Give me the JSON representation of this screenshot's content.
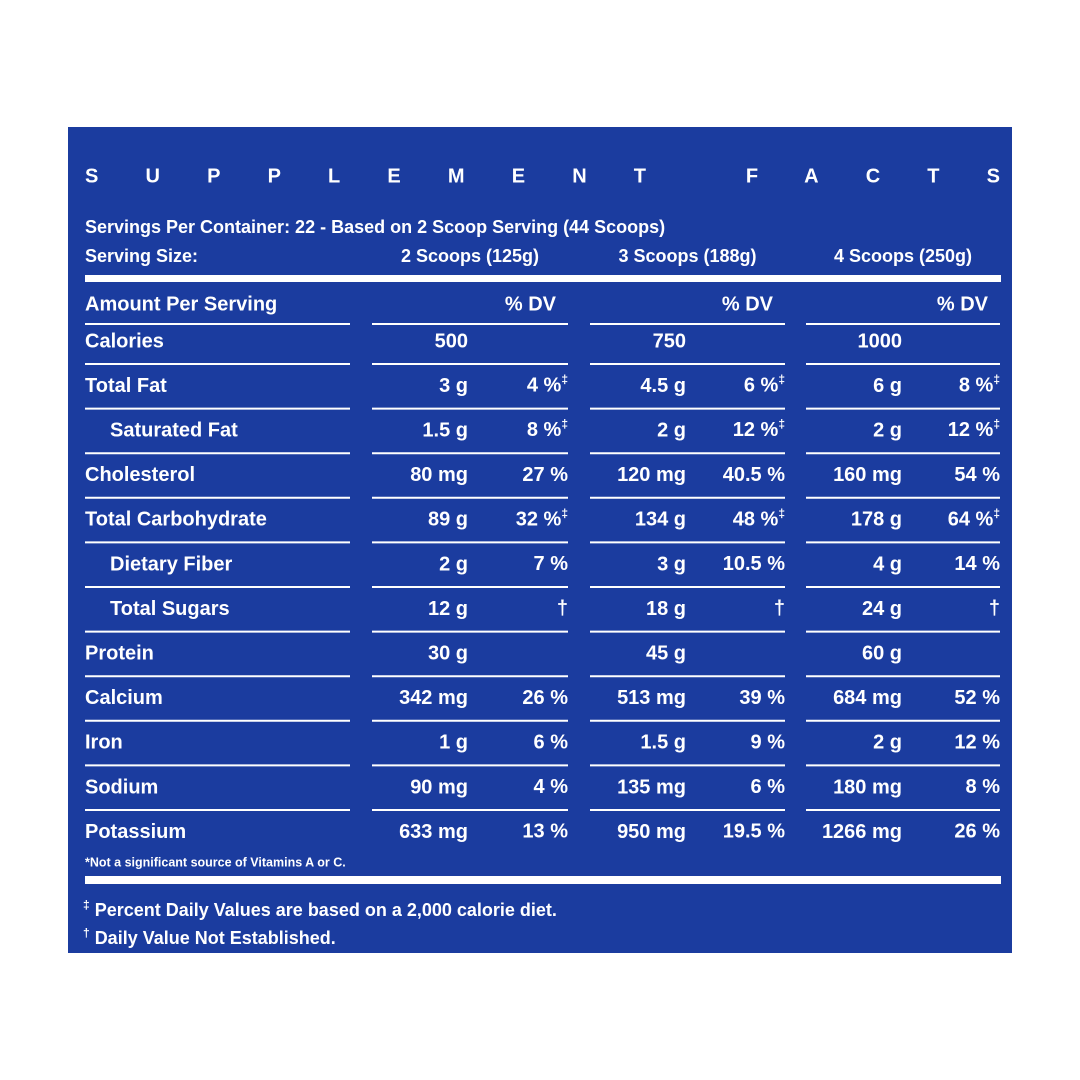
{
  "title": "SUPPLEMENT FACTS",
  "servings_per_container": "Servings Per Container: 22 - Based on 2 Scoop Serving (44 Scoops)",
  "serving_size_label": "Serving Size:",
  "serving_sizes": [
    "2 Scoops (125g)",
    "3 Scoops (188g)",
    "4 Scoops (250g)"
  ],
  "amount_header": "Amount Per Serving",
  "dv_header": "% DV",
  "rows": [
    {
      "label": "Calories",
      "cells": [
        [
          "500"
        ],
        [
          "750"
        ],
        [
          "1000"
        ]
      ]
    },
    {
      "label": "Total Fat",
      "cells": [
        [
          "3 g",
          "4 %",
          "‡"
        ],
        [
          "4.5 g",
          "6 %",
          "‡"
        ],
        [
          "6 g",
          "8 %",
          "‡"
        ]
      ]
    },
    {
      "label": "Saturated Fat",
      "indent": true,
      "cells": [
        [
          "1.5 g",
          "8 %",
          "‡"
        ],
        [
          "2 g",
          "12 %",
          "‡"
        ],
        [
          "2 g",
          "12 %",
          "‡"
        ]
      ]
    },
    {
      "label": "Cholesterol",
      "cells": [
        [
          "80 mg",
          "27 %"
        ],
        [
          "120 mg",
          "40.5 %"
        ],
        [
          "160 mg",
          "54 %"
        ]
      ]
    },
    {
      "label": "Total Carbohydrate",
      "cells": [
        [
          "89 g",
          "32 %",
          "‡"
        ],
        [
          "134 g",
          "48 %",
          "‡"
        ],
        [
          "178 g",
          "64 %",
          "‡"
        ]
      ]
    },
    {
      "label": "Dietary Fiber",
      "indent": true,
      "cells": [
        [
          "2 g",
          "7 %"
        ],
        [
          "3 g",
          "10.5 %"
        ],
        [
          "4 g",
          "14 %"
        ]
      ]
    },
    {
      "label": "Total Sugars",
      "indent": true,
      "cells": [
        [
          "12 g",
          "†"
        ],
        [
          "18 g",
          "†"
        ],
        [
          "24 g",
          "†"
        ]
      ]
    },
    {
      "label": "Protein",
      "cells": [
        [
          "30 g"
        ],
        [
          "45 g"
        ],
        [
          "60 g"
        ]
      ]
    },
    {
      "label": "Calcium",
      "cells": [
        [
          "342 mg",
          "26 %"
        ],
        [
          "513 mg",
          "39 %"
        ],
        [
          "684 mg",
          "52 %"
        ]
      ]
    },
    {
      "label": "Iron",
      "cells": [
        [
          "1 g",
          "6 %"
        ],
        [
          "1.5 g",
          "9 %"
        ],
        [
          "2 g",
          "12 %"
        ]
      ]
    },
    {
      "label": "Sodium",
      "cells": [
        [
          "90 mg",
          "4 %"
        ],
        [
          "135 mg",
          "6 %"
        ],
        [
          "180 mg",
          "8 %"
        ]
      ]
    },
    {
      "label": "Potassium",
      "cells": [
        [
          "633 mg",
          "13 %"
        ],
        [
          "950 mg",
          "19.5 %"
        ],
        [
          "1266 mg",
          "26 %"
        ]
      ]
    }
  ],
  "note": "*Not a significant source of Vitamins A or C.",
  "footnotes": [
    {
      "mark": "‡",
      "text": "Percent Daily Values are based on a 2,000 calorie diet."
    },
    {
      "mark": "†",
      "text": "Daily Value Not Established."
    }
  ]
}
